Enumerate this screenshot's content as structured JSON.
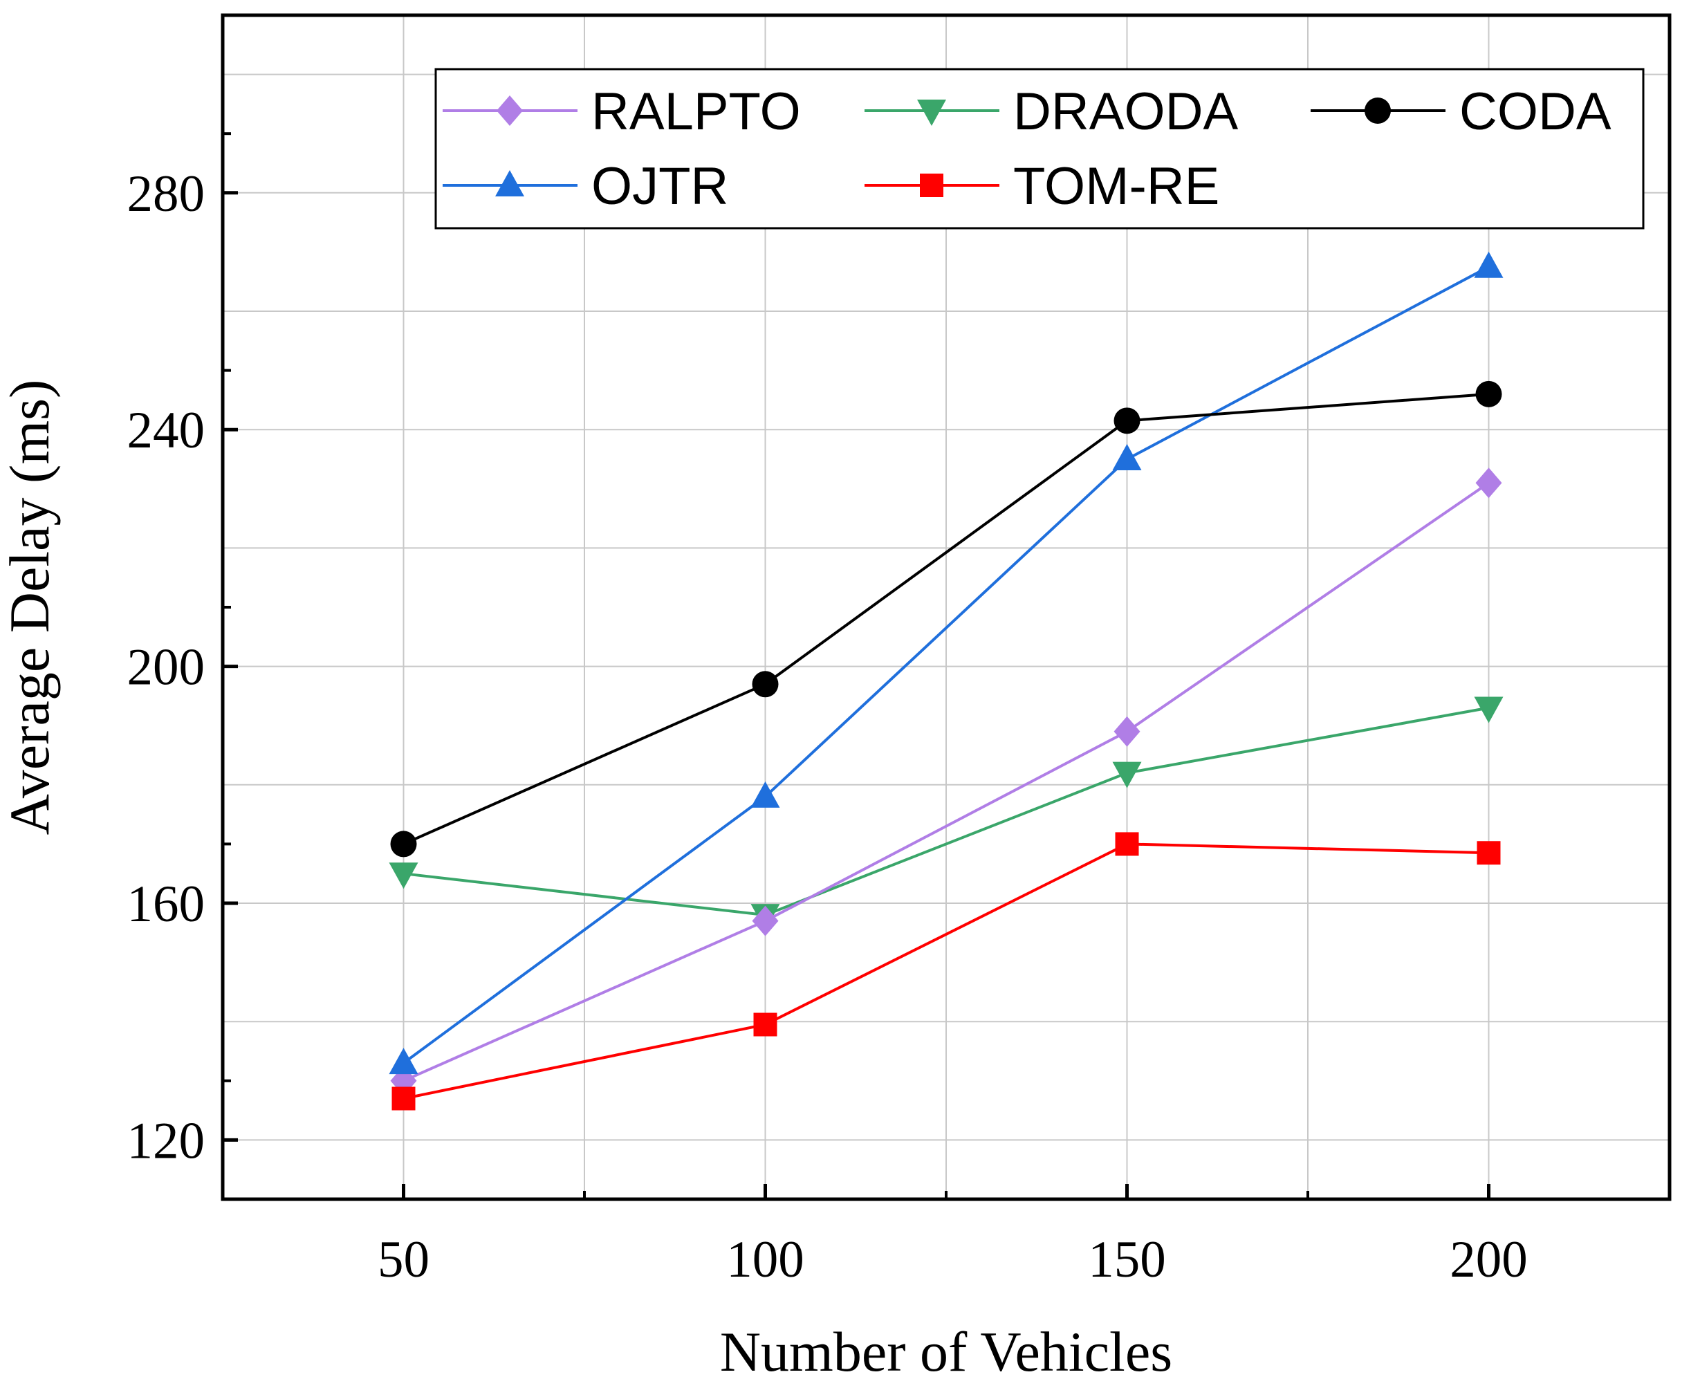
{
  "chart_data": {
    "type": "line",
    "title": "",
    "xlabel": "Number of Vehicles",
    "ylabel": "Average Delay (ms)",
    "x": [
      50,
      100,
      150,
      200
    ],
    "xlim": [
      25,
      225
    ],
    "ylim": [
      110,
      310
    ],
    "xticks": [
      50,
      100,
      150,
      200
    ],
    "yticks": [
      120,
      160,
      200,
      240,
      280
    ],
    "xticks_label": [
      "50",
      "100",
      "150",
      "200"
    ],
    "yticks_label": [
      "120",
      "160",
      "200",
      "240",
      "280"
    ],
    "grid": true,
    "legend_position": "top-right",
    "series": [
      {
        "name": "RALPTO",
        "marker": "diamond",
        "color": "#b07ee6",
        "values": [
          130,
          157,
          189,
          231
        ]
      },
      {
        "name": "DRAODA",
        "marker": "triangle-down",
        "color": "#3aa66a",
        "values": [
          165,
          158,
          182,
          193
        ]
      },
      {
        "name": "CODA",
        "marker": "circle",
        "color": "#000000",
        "values": [
          170,
          197,
          241.5,
          246
        ]
      },
      {
        "name": "OJTR",
        "marker": "triangle-up",
        "color": "#1f6fdc",
        "values": [
          133,
          178,
          235,
          267.5
        ]
      },
      {
        "name": "TOM-RE",
        "marker": "square",
        "color": "#ff0000",
        "values": [
          127,
          139.5,
          170,
          168.5
        ]
      }
    ]
  }
}
